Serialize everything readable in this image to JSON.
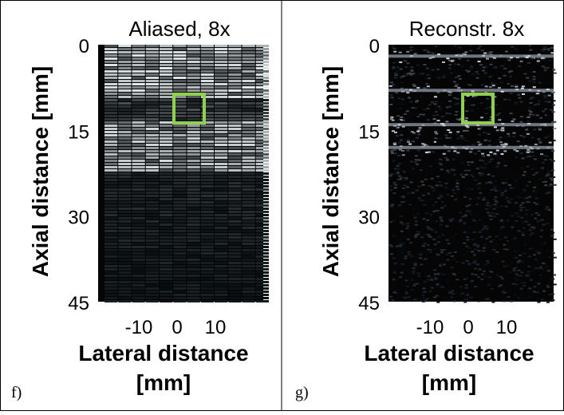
{
  "panels": [
    {
      "title": "Aliased, 8x",
      "ylabel": "Axial distance [mm]",
      "xlabel_lines": [
        "Lateral distance",
        "[mm]"
      ],
      "yticks": [
        0,
        15,
        30,
        45
      ],
      "xticks": [
        -10,
        0,
        10
      ],
      "panel_label": "f)"
    },
    {
      "title": "Reconstr. 8x",
      "ylabel": "Axial distance [mm]",
      "xlabel_lines": [
        "Lateral distance",
        "[mm]"
      ],
      "yticks": [
        0,
        15,
        30,
        45
      ],
      "xticks": [
        -10,
        0,
        10
      ],
      "panel_label": "g)"
    }
  ]
}
